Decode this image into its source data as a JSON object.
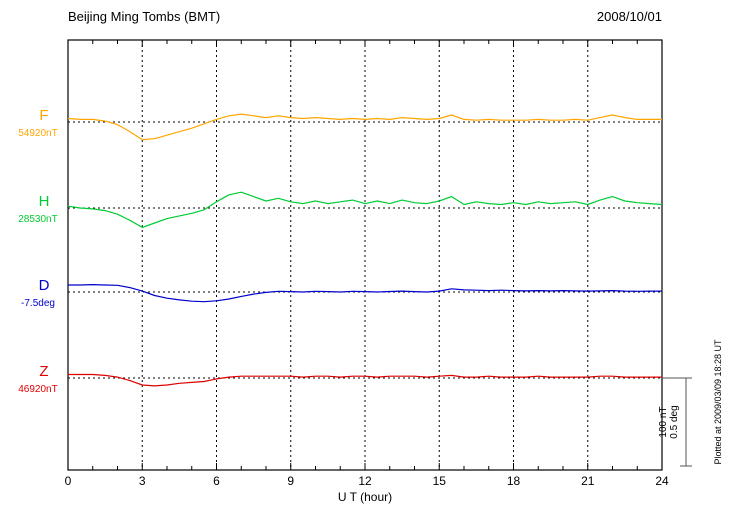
{
  "header": {
    "title": "Beijing Ming Tombs (BMT)",
    "date": "2008/10/01"
  },
  "footer": {
    "plotted_at": "Plotted at 2009/03/09 18:28 UT"
  },
  "scale_bar": {
    "line1": "100 nT",
    "line2": "0.5 deg"
  },
  "chart_data": {
    "type": "line",
    "title": "Beijing Ming Tombs (BMT)",
    "date": "2008/10/01",
    "xlabel": "U T (hour)",
    "xlim": [
      0,
      24
    ],
    "x_ticks": [
      0,
      3,
      6,
      9,
      12,
      15,
      18,
      21,
      24
    ],
    "grid": "dotted vertical lines every 3 hours; dotted horizontal baseline per trace",
    "legend_position": "left",
    "sample_step_hours": 0.5,
    "scale_reference": {
      "nT_per_bar": 100,
      "deg_per_bar": 0.5
    },
    "series": [
      {
        "name": "F",
        "unit": "nT",
        "baseline_label": "54920nT",
        "baseline_value": 54920,
        "color": "#FFA500",
        "offsets": [
          4,
          3,
          3,
          1,
          -3,
          -11,
          -20,
          -19,
          -15,
          -11,
          -7,
          -2,
          3,
          7,
          9,
          7,
          5,
          7,
          5,
          4,
          5,
          4,
          3,
          4,
          3,
          4,
          3,
          5,
          4,
          3,
          4,
          8,
          3,
          2,
          3,
          2,
          2,
          2,
          3,
          2,
          2,
          3,
          2,
          5,
          8,
          5,
          3,
          3,
          3
        ]
      },
      {
        "name": "H",
        "unit": "nT",
        "baseline_label": "28530nT",
        "baseline_value": 28530,
        "color": "#00CC33",
        "offsets": [
          2,
          0,
          -1,
          -3,
          -7,
          -14,
          -22,
          -17,
          -12,
          -9,
          -6,
          -2,
          7,
          15,
          18,
          13,
          8,
          11,
          7,
          5,
          8,
          5,
          7,
          9,
          5,
          8,
          5,
          9,
          6,
          5,
          8,
          13,
          4,
          7,
          5,
          4,
          6,
          4,
          7,
          5,
          6,
          7,
          4,
          9,
          13,
          8,
          6,
          5,
          4
        ]
      },
      {
        "name": "D",
        "unit": "deg",
        "baseline_label": "-7.5deg",
        "baseline_value": -7.5,
        "color": "#0000CC",
        "offsets": [
          0.04,
          0.04,
          0.042,
          0.04,
          0.038,
          0.025,
          0.005,
          -0.02,
          -0.035,
          -0.045,
          -0.052,
          -0.055,
          -0.05,
          -0.04,
          -0.025,
          -0.012,
          -0.002,
          0.004,
          0.002,
          0,
          0.004,
          0.002,
          0,
          0.004,
          0.002,
          0,
          0.003,
          0.005,
          0.002,
          0,
          0.005,
          0.018,
          0.012,
          0.01,
          0.008,
          0.01,
          0.008,
          0.006,
          0.008,
          0.006,
          0.008,
          0.006,
          0.005,
          0.006,
          0.008,
          0.005,
          0.004,
          0.005,
          0.005
        ]
      },
      {
        "name": "Z",
        "unit": "nT",
        "baseline_label": "46920nT",
        "baseline_value": 46920,
        "color": "#DD0000",
        "offsets": [
          4,
          4,
          4,
          3,
          1,
          -3,
          -8,
          -9,
          -8,
          -6,
          -5,
          -4,
          -1,
          1,
          2,
          2,
          2,
          2,
          2,
          1,
          2,
          2,
          1,
          2,
          2,
          1,
          2,
          2,
          2,
          1,
          2,
          3,
          1,
          1,
          2,
          1,
          1,
          1,
          2,
          1,
          1,
          1,
          1,
          2,
          2,
          1,
          1,
          1,
          1
        ]
      }
    ]
  }
}
